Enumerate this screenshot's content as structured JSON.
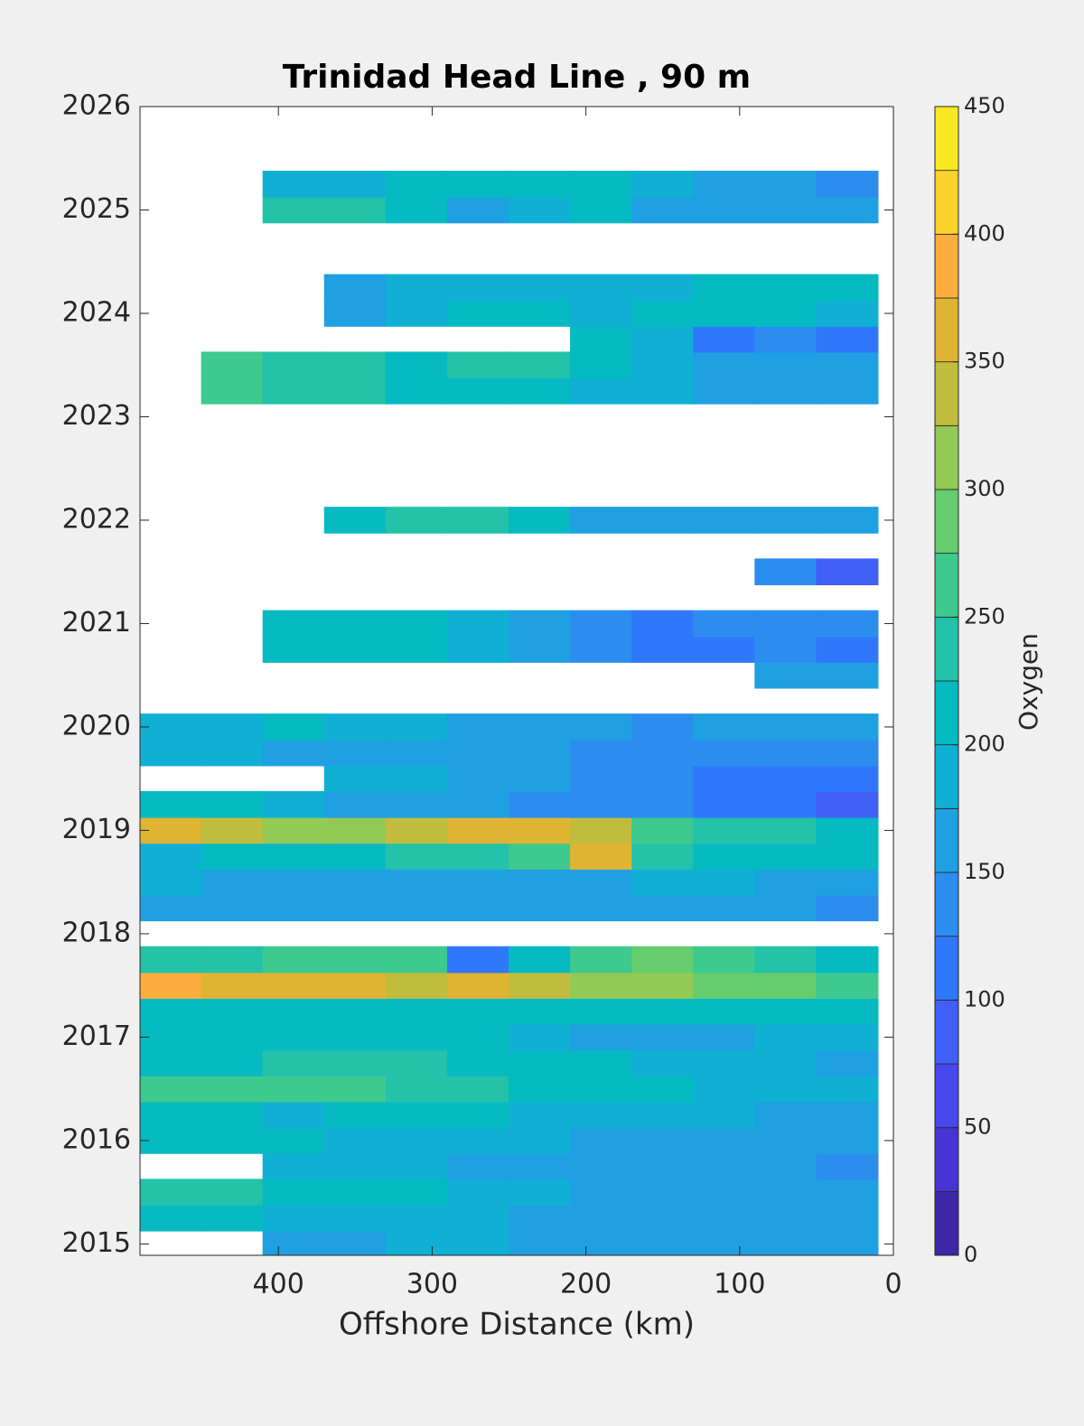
{
  "chart_data": {
    "type": "contourf",
    "title": "Trinidad Head Line , 90 m",
    "xlabel": "Offshore Distance (km)",
    "colorbar_label": "Oxygen",
    "xlim": [
      490,
      0
    ],
    "xticks": [
      400,
      300,
      200,
      100,
      0
    ],
    "ylim": [
      2014.89,
      2026
    ],
    "yticks": [
      2015,
      2016,
      2017,
      2018,
      2019,
      2020,
      2021,
      2022,
      2023,
      2024,
      2025,
      2026
    ],
    "clim": [
      0,
      450
    ],
    "cticks": [
      0,
      50,
      100,
      150,
      200,
      250,
      300,
      350,
      400,
      450
    ],
    "levels": [
      0,
      25,
      50,
      75,
      100,
      125,
      150,
      175,
      200,
      225,
      250,
      275,
      300,
      325,
      350,
      375,
      400,
      425,
      450
    ],
    "colormap": [
      "#3d26a8",
      "#4536d4",
      "#4748eb",
      "#4060f8",
      "#2f78fb",
      "#2b8eef",
      "#1fa0e2",
      "#10b0d5",
      "#06bac2",
      "#24c2a8",
      "#3ec98e",
      "#65cd6e",
      "#93c955",
      "#c0bc3e",
      "#dfb433",
      "#fbae3d",
      "#fbd22c",
      "#f6e921"
    ],
    "x": [
      470,
      430,
      390,
      350,
      310,
      270,
      230,
      190,
      150,
      110,
      70,
      30
    ],
    "y": [
      2015,
      2015.25,
      2015.5,
      2015.75,
      2016,
      2016.25,
      2016.5,
      2016.75,
      2017,
      2017.25,
      2017.5,
      2017.75,
      2018,
      2018.25,
      2018.5,
      2018.75,
      2019,
      2019.25,
      2019.5,
      2019.75,
      2020,
      2020.25,
      2020.5,
      2020.75,
      2021,
      2021.25,
      2021.5,
      2021.75,
      2022,
      2022.25,
      2022.5,
      2022.75,
      2023,
      2023.25,
      2023.5,
      2023.75,
      2024,
      2024.25,
      2024.5,
      2024.75,
      2025,
      2025.25
    ],
    "z": [
      [
        null,
        null,
        160,
        170,
        180,
        180,
        170,
        170,
        170,
        170,
        160,
        150
      ],
      [
        200,
        200,
        190,
        180,
        190,
        180,
        170,
        160,
        160,
        160,
        150,
        150
      ],
      [
        230,
        230,
        220,
        210,
        200,
        190,
        180,
        170,
        170,
        170,
        160,
        160
      ],
      [
        null,
        null,
        190,
        190,
        180,
        170,
        160,
        160,
        160,
        150,
        150,
        140
      ],
      [
        210,
        200,
        200,
        190,
        190,
        180,
        180,
        170,
        170,
        160,
        160,
        150
      ],
      [
        200,
        200,
        190,
        200,
        200,
        200,
        190,
        190,
        190,
        180,
        170,
        170
      ],
      [
        250,
        260,
        250,
        250,
        240,
        230,
        220,
        210,
        200,
        190,
        190,
        180
      ],
      [
        220,
        210,
        230,
        230,
        240,
        220,
        220,
        200,
        190,
        180,
        180,
        170
      ],
      [
        210,
        200,
        200,
        200,
        200,
        200,
        190,
        170,
        150,
        170,
        180,
        180
      ],
      [
        220,
        210,
        200,
        200,
        210,
        220,
        210,
        220,
        210,
        220,
        210,
        200
      ],
      [
        380,
        360,
        360,
        350,
        330,
        350,
        340,
        310,
        300,
        290,
        280,
        270
      ],
      [
        240,
        240,
        250,
        250,
        260,
        110,
        200,
        260,
        290,
        250,
        230,
        210
      ],
      [
        null,
        null,
        null,
        null,
        null,
        null,
        null,
        null,
        null,
        null,
        null,
        null
      ],
      [
        160,
        160,
        150,
        150,
        160,
        160,
        160,
        150,
        160,
        160,
        150,
        140
      ],
      [
        180,
        170,
        160,
        170,
        170,
        160,
        160,
        170,
        180,
        180,
        170,
        160
      ],
      [
        190,
        200,
        210,
        220,
        230,
        240,
        260,
        360,
        240,
        220,
        210,
        200
      ],
      [
        370,
        340,
        320,
        320,
        330,
        360,
        350,
        330,
        260,
        230,
        230,
        220
      ],
      [
        200,
        200,
        190,
        170,
        150,
        150,
        140,
        130,
        130,
        120,
        110,
        90
      ],
      [
        null,
        null,
        null,
        190,
        180,
        170,
        150,
        140,
        130,
        120,
        120,
        100
      ],
      [
        180,
        180,
        170,
        170,
        160,
        150,
        150,
        140,
        140,
        130,
        130,
        130
      ],
      [
        190,
        190,
        200,
        190,
        180,
        170,
        160,
        150,
        140,
        150,
        150,
        150
      ],
      [
        null,
        null,
        null,
        null,
        null,
        null,
        null,
        null,
        null,
        null,
        null,
        null
      ],
      [
        null,
        null,
        null,
        null,
        null,
        null,
        null,
        null,
        null,
        null,
        170,
        170
      ],
      [
        null,
        null,
        220,
        210,
        200,
        190,
        170,
        130,
        110,
        120,
        130,
        120
      ],
      [
        null,
        null,
        210,
        200,
        200,
        190,
        160,
        130,
        120,
        130,
        130,
        130
      ],
      [
        null,
        null,
        null,
        null,
        null,
        null,
        null,
        null,
        null,
        null,
        null,
        null
      ],
      [
        null,
        null,
        null,
        null,
        null,
        null,
        null,
        null,
        null,
        null,
        130,
        90
      ],
      [
        null,
        null,
        null,
        null,
        null,
        null,
        null,
        null,
        null,
        null,
        null,
        null
      ],
      [
        null,
        null,
        null,
        220,
        230,
        230,
        200,
        170,
        150,
        150,
        150,
        150
      ],
      [
        null,
        null,
        null,
        null,
        null,
        null,
        null,
        null,
        null,
        null,
        null,
        null
      ],
      [
        null,
        null,
        null,
        null,
        null,
        null,
        null,
        null,
        null,
        null,
        null,
        null
      ],
      [
        null,
        null,
        null,
        null,
        null,
        null,
        null,
        null,
        null,
        null,
        null,
        null
      ],
      [
        null,
        null,
        null,
        null,
        null,
        null,
        null,
        null,
        null,
        null,
        null,
        null
      ],
      [
        null,
        250,
        240,
        230,
        210,
        210,
        200,
        190,
        180,
        160,
        150,
        150
      ],
      [
        null,
        250,
        240,
        230,
        220,
        230,
        230,
        210,
        180,
        170,
        160,
        150
      ],
      [
        null,
        null,
        null,
        null,
        null,
        null,
        null,
        210,
        190,
        110,
        130,
        110
      ],
      [
        null,
        null,
        null,
        170,
        190,
        200,
        200,
        190,
        200,
        220,
        220,
        190
      ],
      [
        null,
        null,
        null,
        160,
        180,
        190,
        190,
        190,
        190,
        200,
        200,
        200
      ],
      [
        null,
        null,
        null,
        null,
        null,
        null,
        null,
        null,
        null,
        null,
        null,
        null
      ],
      [
        null,
        null,
        null,
        null,
        null,
        null,
        null,
        null,
        null,
        null,
        null,
        null
      ],
      [
        null,
        null,
        240,
        230,
        200,
        170,
        190,
        200,
        170,
        150,
        160,
        150
      ],
      [
        null,
        null,
        180,
        190,
        210,
        220,
        220,
        210,
        190,
        160,
        150,
        130
      ]
    ]
  }
}
